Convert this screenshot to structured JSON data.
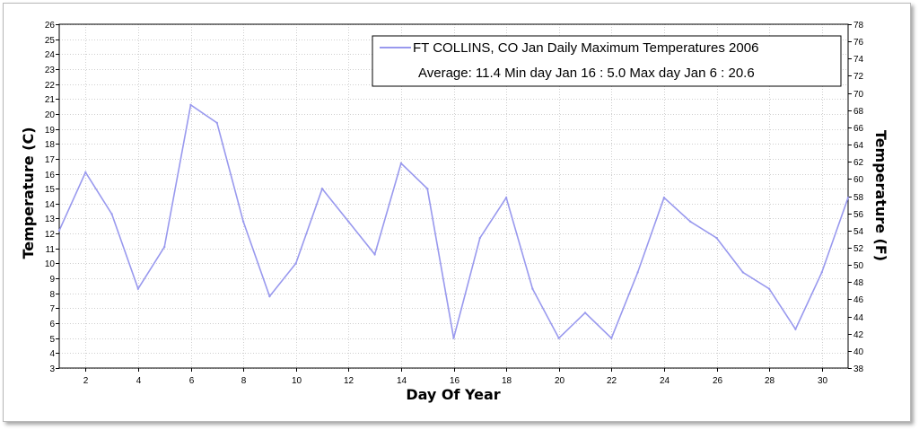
{
  "chart_data": {
    "type": "line",
    "legend": {
      "line1": "FT COLLINS, CO  Jan  Daily Maximum Temperatures 2006",
      "line2": "Average: 11.4  Min day Jan 16 : 5.0  Max day Jan 6 : 20.6",
      "placement": "top-right"
    },
    "xlabel": "Day Of Year",
    "ylabel_left": "Temperature (C)",
    "ylabel_right": "Temperature (F)",
    "xlim": [
      1,
      31
    ],
    "ylim_left": [
      3,
      26
    ],
    "ylim_right": [
      38,
      78
    ],
    "x_ticks": [
      2,
      4,
      6,
      8,
      10,
      12,
      14,
      16,
      18,
      20,
      22,
      24,
      26,
      28,
      30
    ],
    "y_left_ticks": [
      3,
      4,
      5,
      6,
      7,
      8,
      9,
      10,
      11,
      12,
      13,
      14,
      15,
      16,
      17,
      18,
      19,
      20,
      21,
      22,
      23,
      24,
      25,
      26
    ],
    "y_right_ticks": [
      38,
      40,
      42,
      44,
      46,
      48,
      50,
      52,
      54,
      56,
      58,
      60,
      62,
      64,
      66,
      68,
      70,
      72,
      74,
      76,
      78
    ],
    "grid": true,
    "series_color": "#9999ee",
    "series": [
      {
        "x": [
          1,
          2,
          3,
          4,
          5,
          6,
          7,
          8,
          9,
          10,
          11,
          12,
          13,
          14,
          15,
          16,
          17,
          18,
          19,
          20,
          21,
          22,
          23,
          24,
          25,
          26,
          27,
          28,
          29,
          30,
          31
        ],
        "values": [
          12.2,
          16.1,
          13.3,
          8.3,
          11.1,
          20.6,
          19.4,
          12.8,
          7.8,
          10.0,
          15.0,
          12.8,
          10.6,
          16.7,
          15.0,
          5.0,
          11.7,
          14.4,
          8.3,
          5.0,
          6.7,
          5.0,
          9.4,
          14.4,
          12.8,
          11.7,
          9.4,
          8.3,
          5.6,
          9.4,
          14.4
        ]
      }
    ]
  }
}
